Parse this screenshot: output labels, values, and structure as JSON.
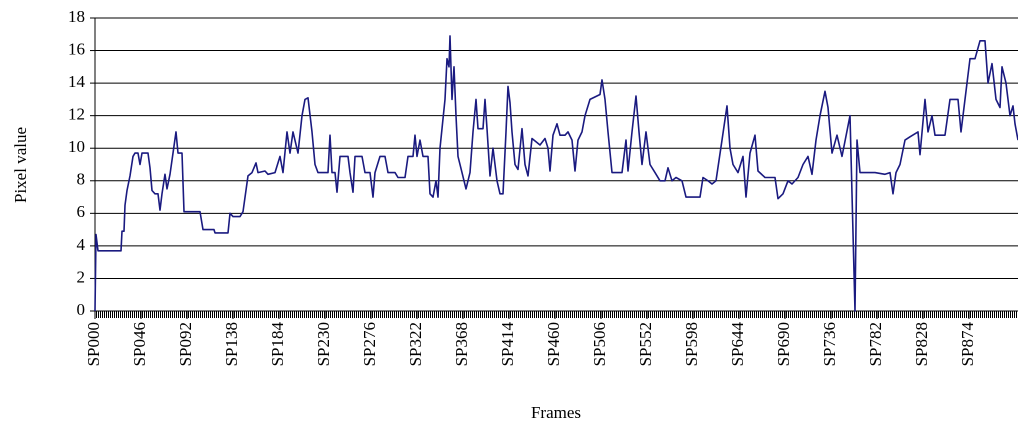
{
  "chart_data": {
    "type": "line",
    "x_label": "Frames",
    "y_label": "Pixel value",
    "color": "#1a1a80",
    "xlim": [
      0,
      923
    ],
    "ylim": [
      0,
      18
    ],
    "yticks": [
      0,
      2,
      4,
      6,
      8,
      10,
      12,
      14,
      16,
      18
    ],
    "grid": true,
    "xticks": [
      {
        "value": 0,
        "label": "SP000"
      },
      {
        "value": 46,
        "label": "SP046"
      },
      {
        "value": 92,
        "label": "SP092"
      },
      {
        "value": 138,
        "label": "SP138"
      },
      {
        "value": 184,
        "label": "SP184"
      },
      {
        "value": 230,
        "label": "SP230"
      },
      {
        "value": 276,
        "label": "SP276"
      },
      {
        "value": 322,
        "label": "SP322"
      },
      {
        "value": 368,
        "label": "SP368"
      },
      {
        "value": 414,
        "label": "SP414"
      },
      {
        "value": 460,
        "label": "SP460"
      },
      {
        "value": 506,
        "label": "SP506"
      },
      {
        "value": 552,
        "label": "SP552"
      },
      {
        "value": 598,
        "label": "SP598"
      },
      {
        "value": 644,
        "label": "SP644"
      },
      {
        "value": 690,
        "label": "SP690"
      },
      {
        "value": 736,
        "label": "SP736"
      },
      {
        "value": 782,
        "label": "SP782"
      },
      {
        "value": 828,
        "label": "SP828"
      },
      {
        "value": 874,
        "label": "SP874"
      }
    ],
    "x": [
      0,
      1,
      3,
      26,
      27,
      29,
      30,
      32,
      35,
      38,
      40,
      43,
      45,
      47,
      53,
      55,
      57,
      60,
      63,
      65,
      67,
      70,
      72,
      75,
      78,
      81,
      83,
      87,
      89,
      105,
      108,
      119,
      120,
      133,
      135,
      138,
      145,
      148,
      153,
      157,
      161,
      163,
      170,
      173,
      180,
      185,
      188,
      192,
      195,
      198,
      203,
      207,
      210,
      213,
      217,
      220,
      223,
      233,
      235,
      237,
      240,
      242,
      245,
      253,
      255,
      258,
      260,
      267,
      270,
      275,
      278,
      280,
      285,
      290,
      293,
      300,
      303,
      310,
      313,
      318,
      320,
      322,
      325,
      328,
      333,
      335,
      338,
      341,
      343,
      345,
      350,
      352,
      354,
      355,
      357,
      359,
      361,
      363,
      367,
      371,
      375,
      378,
      381,
      383,
      388,
      390,
      392,
      395,
      398,
      402,
      405,
      408,
      411,
      413,
      415,
      417,
      420,
      423,
      427,
      430,
      433,
      437,
      445,
      450,
      453,
      455,
      458,
      462,
      465,
      470,
      473,
      477,
      480,
      483,
      487,
      490,
      495,
      505,
      507,
      510,
      513,
      517,
      527,
      531,
      533,
      537,
      541,
      544,
      547,
      551,
      555,
      560,
      565,
      570,
      573,
      577,
      581,
      587,
      591,
      605,
      608,
      613,
      617,
      621,
      627,
      632,
      635,
      638,
      643,
      648,
      651,
      655,
      660,
      663,
      670,
      680,
      683,
      688,
      693,
      697,
      703,
      708,
      713,
      717,
      721,
      725,
      730,
      733,
      737,
      742,
      747,
      755,
      760,
      762,
      765,
      780,
      790,
      795,
      798,
      801,
      805,
      810,
      815,
      823,
      825,
      830,
      833,
      837,
      840,
      850,
      855,
      863,
      866,
      870,
      875,
      880,
      885,
      890,
      893,
      897,
      901,
      905,
      907,
      911,
      915,
      918,
      920,
      923
    ],
    "values": [
      0,
      4.7,
      3.7,
      3.7,
      4.9,
      4.9,
      6.5,
      7.4,
      8.3,
      9.5,
      9.7,
      9.7,
      9.0,
      9.7,
      9.7,
      8.8,
      7.4,
      7.2,
      7.2,
      6.2,
      7.2,
      8.4,
      7.5,
      8.4,
      9.7,
      11,
      9.7,
      9.7,
      6.1,
      6.1,
      5,
      5,
      4.8,
      4.8,
      6,
      5.8,
      5.8,
      6.1,
      8.3,
      8.5,
      9.1,
      8.5,
      8.6,
      8.4,
      8.5,
      9.5,
      8.5,
      11,
      9.7,
      11,
      9.7,
      12,
      13,
      13.1,
      11,
      9,
      8.5,
      8.5,
      10.8,
      8.5,
      8.5,
      7.3,
      9.5,
      9.5,
      8.5,
      7.3,
      9.5,
      9.5,
      8.5,
      8.5,
      7,
      8.5,
      9.5,
      9.5,
      8.5,
      8.5,
      8.2,
      8.2,
      9.5,
      9.5,
      10.8,
      9.5,
      10.5,
      9.5,
      9.5,
      7.2,
      7,
      8,
      7,
      10,
      13,
      15.5,
      15,
      16.9,
      13,
      15,
      12,
      9.5,
      8.5,
      7.5,
      8.5,
      11,
      13,
      11.2,
      11.2,
      13,
      11.2,
      8.3,
      10,
      8,
      7.2,
      7.2,
      11,
      13.8,
      12.8,
      11,
      9,
      8.7,
      11.2,
      9,
      8.3,
      10.6,
      10.2,
      10.6,
      10,
      8.6,
      10.8,
      11.5,
      10.8,
      10.8,
      11,
      10.5,
      8.6,
      10.5,
      11,
      12,
      13,
      13.3,
      14.2,
      13,
      11,
      8.5,
      8.5,
      10.5,
      8.6,
      11,
      13.2,
      11,
      9,
      11,
      9,
      8.5,
      8,
      8,
      8.8,
      8,
      8.2,
      8,
      7,
      7,
      8.2,
      8,
      7.8,
      8,
      10.5,
      12.6,
      10,
      9,
      8.5,
      9.5,
      7,
      9.7,
      10.8,
      8.6,
      8.2,
      8.2,
      6.9,
      7.2,
      8,
      7.8,
      8.2,
      9,
      9.5,
      8.4,
      10.5,
      12,
      13.5,
      12.5,
      9.7,
      10.8,
      9.5,
      12,
      0,
      10.5,
      8.5,
      8.5,
      8.4,
      8.5,
      7.2,
      8.5,
      9,
      10.5,
      10.7,
      11,
      9.6,
      13,
      11,
      12,
      10.8,
      10.8,
      13,
      13,
      11,
      13,
      15.5,
      15.5,
      16.6,
      16.6,
      14,
      15.2,
      13,
      12.5,
      15,
      14,
      12,
      12.6,
      11.5,
      10.5
    ]
  }
}
